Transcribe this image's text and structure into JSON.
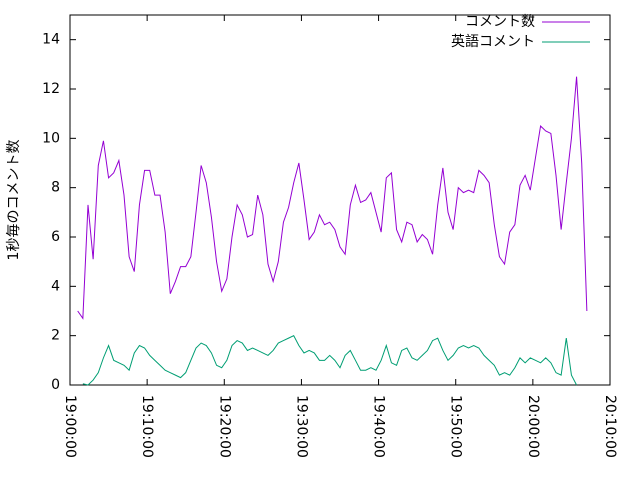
{
  "chart_data": {
    "type": "line",
    "ylabel": "1秒毎のコメント数",
    "x": [
      "19:01:00",
      "19:01:40",
      "19:02:20",
      "19:03:00",
      "19:03:40",
      "19:04:20",
      "19:05:00",
      "19:05:40",
      "19:06:20",
      "19:07:00",
      "19:07:40",
      "19:08:20",
      "19:09:00",
      "19:09:40",
      "19:10:20",
      "19:11:00",
      "19:11:40",
      "19:12:20",
      "19:13:00",
      "19:13:40",
      "19:14:20",
      "19:15:00",
      "19:15:40",
      "19:16:20",
      "19:17:00",
      "19:17:40",
      "19:18:20",
      "19:19:00",
      "19:19:40",
      "19:20:20",
      "19:21:00",
      "19:21:40",
      "19:22:20",
      "19:23:00",
      "19:23:40",
      "19:24:20",
      "19:25:00",
      "19:25:40",
      "19:26:20",
      "19:27:00",
      "19:27:40",
      "19:28:20",
      "19:29:00",
      "19:29:40",
      "19:30:20",
      "19:31:00",
      "19:31:40",
      "19:32:20",
      "19:33:00",
      "19:33:40",
      "19:34:20",
      "19:35:00",
      "19:35:40",
      "19:36:20",
      "19:37:00",
      "19:37:40",
      "19:38:20",
      "19:39:00",
      "19:39:40",
      "19:40:20",
      "19:41:00",
      "19:41:40",
      "19:42:20",
      "19:43:00",
      "19:43:40",
      "19:44:20",
      "19:45:00",
      "19:45:40",
      "19:46:20",
      "19:47:00",
      "19:47:40",
      "19:48:20",
      "19:49:00",
      "19:49:40",
      "19:50:20",
      "19:51:00",
      "19:51:40",
      "19:52:20",
      "19:53:00",
      "19:53:40",
      "19:54:20",
      "19:55:00",
      "19:55:40",
      "19:56:20",
      "19:57:00",
      "19:57:40",
      "19:58:20",
      "19:59:00",
      "19:59:40",
      "20:00:20",
      "20:01:00",
      "20:01:40",
      "20:02:20",
      "20:03:00",
      "20:03:40",
      "20:04:20",
      "20:05:00",
      "20:05:40",
      "20:06:20",
      "20:07:00"
    ],
    "series": [
      {
        "name": "コメント数",
        "color": "#9400d3",
        "values": [
          3.0,
          2.7,
          7.3,
          5.1,
          8.9,
          9.9,
          8.4,
          8.6,
          9.1,
          7.7,
          5.2,
          4.6,
          7.3,
          8.7,
          8.7,
          7.7,
          7.7,
          6.2,
          3.7,
          4.2,
          4.8,
          4.8,
          5.2,
          7.0,
          8.9,
          8.2,
          6.8,
          5.0,
          3.8,
          4.3,
          6.0,
          7.3,
          6.9,
          6.0,
          6.1,
          7.7,
          6.9,
          4.9,
          4.2,
          5.0,
          6.6,
          7.2,
          8.2,
          9.0,
          7.5,
          5.9,
          6.2,
          6.9,
          6.5,
          6.6,
          6.3,
          5.6,
          5.3,
          7.3,
          8.1,
          7.4,
          7.5,
          7.8,
          7.0,
          6.2,
          8.4,
          8.6,
          6.3,
          5.8,
          6.6,
          6.5,
          5.8,
          6.1,
          5.9,
          5.3,
          7.3,
          8.8,
          7.0,
          6.3,
          8.0,
          7.8,
          7.9,
          7.8,
          8.7,
          8.5,
          8.2,
          6.5,
          5.2,
          4.9,
          6.2,
          6.5,
          8.1,
          8.5,
          7.9,
          9.2,
          10.5,
          10.3,
          10.2,
          8.5,
          6.3,
          8.2,
          10.0,
          12.5,
          9.0,
          3.0
        ]
      },
      {
        "name": "英語コメント",
        "color": "#009e73",
        "values": [
          null,
          0.05,
          0,
          0.2,
          0.5,
          1.1,
          1.6,
          1.0,
          0.9,
          0.8,
          0.6,
          1.3,
          1.6,
          1.5,
          1.2,
          1.0,
          0.8,
          0.6,
          0.5,
          0.4,
          0.3,
          0.5,
          1.0,
          1.5,
          1.7,
          1.6,
          1.3,
          0.8,
          0.7,
          1.0,
          1.6,
          1.8,
          1.7,
          1.4,
          1.5,
          1.4,
          1.3,
          1.2,
          1.4,
          1.7,
          1.8,
          1.9,
          2.0,
          1.6,
          1.3,
          1.4,
          1.3,
          1.0,
          1.0,
          1.2,
          1.0,
          0.7,
          1.2,
          1.4,
          1.0,
          0.6,
          0.6,
          0.7,
          0.6,
          1.0,
          1.6,
          0.9,
          0.8,
          1.4,
          1.5,
          1.1,
          1.0,
          1.2,
          1.4,
          1.8,
          1.9,
          1.4,
          1.0,
          1.2,
          1.5,
          1.6,
          1.5,
          1.6,
          1.5,
          1.2,
          1.0,
          0.8,
          0.4,
          0.5,
          0.4,
          0.7,
          1.1,
          0.9,
          1.1,
          1.0,
          0.9,
          1.1,
          0.9,
          0.5,
          0.4,
          1.9,
          0.4,
          0.0,
          null,
          null
        ]
      }
    ],
    "xlim": [
      "19:00:00",
      "20:10:00"
    ],
    "xticks": [
      "19:00:00",
      "19:10:00",
      "19:20:00",
      "19:30:00",
      "19:40:00",
      "19:50:00",
      "20:00:00",
      "20:10:00"
    ],
    "ylim": [
      0,
      15
    ],
    "yticks": [
      0,
      2,
      4,
      6,
      8,
      10,
      12,
      14
    ],
    "legend": "top-right"
  }
}
